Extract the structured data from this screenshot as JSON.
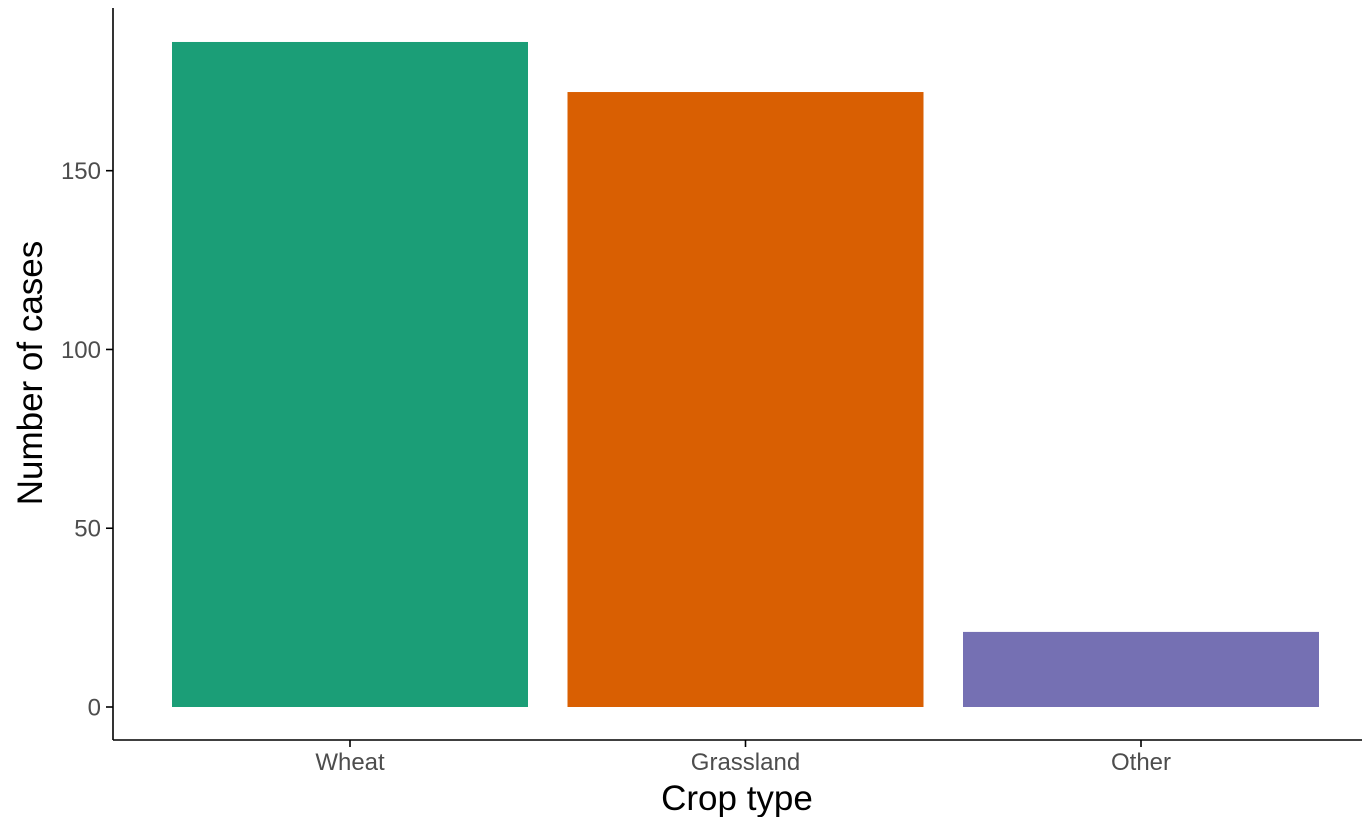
{
  "chart_data": {
    "type": "bar",
    "categories": [
      "Wheat",
      "Grassland",
      "Other"
    ],
    "values": [
      186,
      172,
      21
    ],
    "colors": [
      "#1b9e77",
      "#d95f02",
      "#7570b3"
    ],
    "xlabel": "Crop type",
    "ylabel": "Number of cases",
    "ylim": [
      0,
      195
    ],
    "y_ticks": [
      0,
      50,
      100,
      150
    ],
    "y_tick_labels": [
      "0",
      "50",
      "100",
      "150"
    ],
    "grid": false,
    "legend": "none"
  }
}
